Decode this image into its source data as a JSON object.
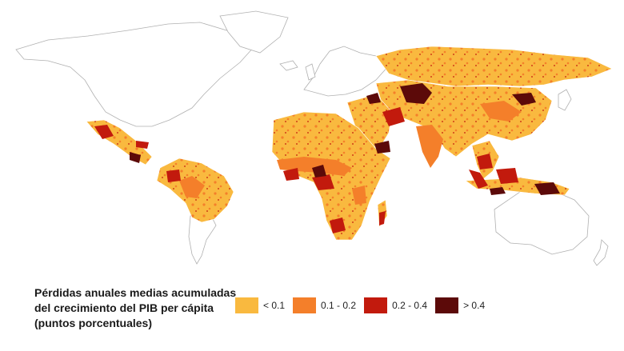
{
  "legend": {
    "title_lines": [
      "Pérdidas anuales medias acumuladas",
      "del crecimiento del PIB per cápita",
      "(puntos porcentuales)"
    ],
    "items": [
      {
        "label": "< 0.1",
        "color": "#f9b93f"
      },
      {
        "label": "0.1 - 0.2",
        "color": "#f47f2a"
      },
      {
        "label": "0.2 - 0.4",
        "color": "#c21a0d"
      },
      {
        "label": "> 0.4",
        "color": "#5c0a09"
      }
    ]
  },
  "map": {
    "background_land_color": "#ffffff",
    "border_color": "#b0b0b0"
  }
}
